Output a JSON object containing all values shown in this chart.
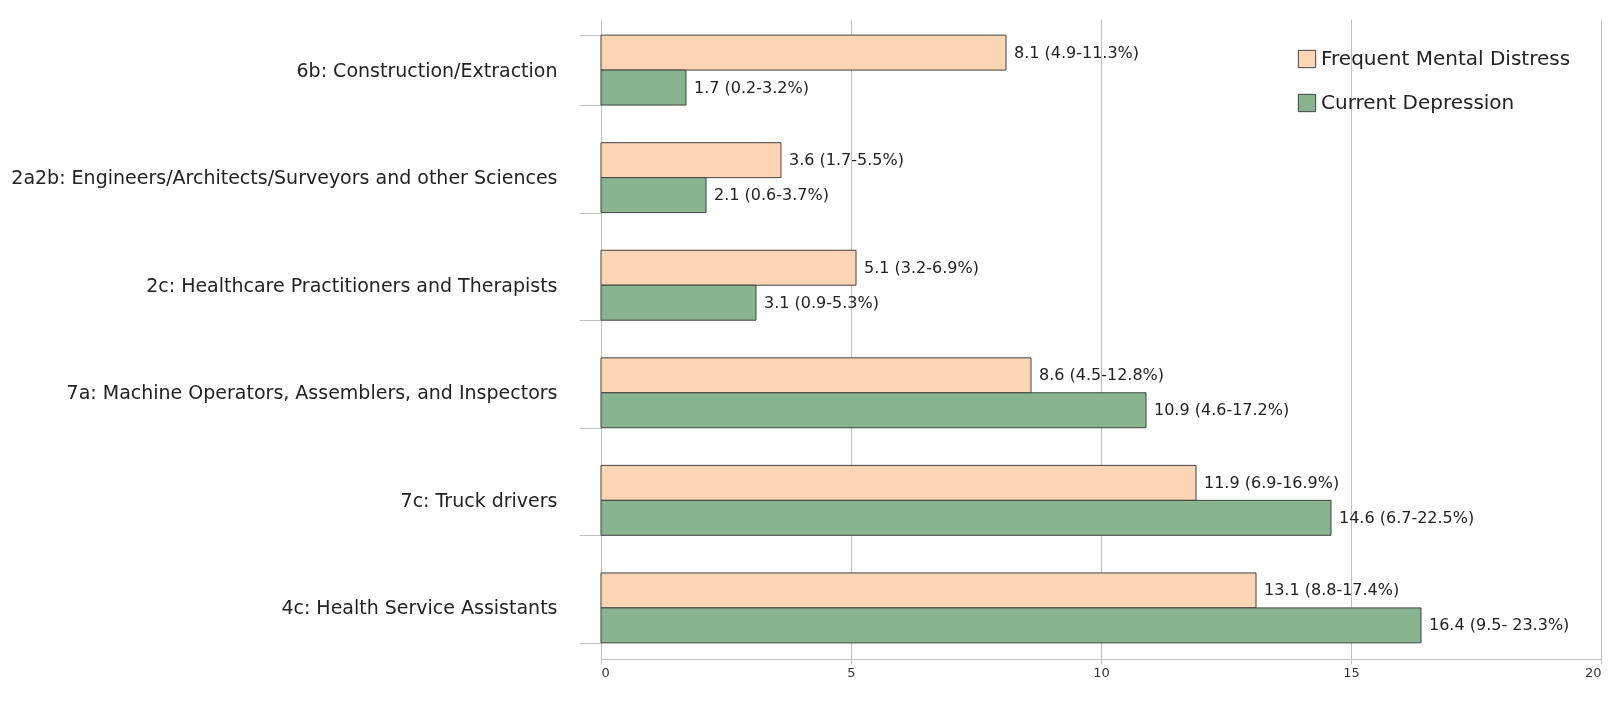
{
  "chart_data": {
    "type": "bar",
    "orientation": "horizontal",
    "categories": [
      "6b: Construction/Extraction",
      "2a2b: Engineers/Architects/Surveyors and other Sciences",
      "2c: Healthcare Practitioners and Therapists",
      "7a: Machine Operators, Assemblers, and Inspectors",
      "7c: Truck drivers",
      "4c: Health Service Assistants"
    ],
    "series": [
      {
        "name": "Frequent Mental Distress",
        "color": "#fcd5b5",
        "values": [
          8.1,
          3.6,
          5.1,
          8.6,
          11.9,
          13.1
        ],
        "value_labels": [
          "8.1  (4.9-11.3%)",
          "3.6  (1.7-5.5%)",
          "5.1  (3.2-6.9%)",
          "8.6  (4.5-12.8%)",
          "11.9  (6.9-16.9%)",
          "13.1  (8.8-17.4%)"
        ]
      },
      {
        "name": "Current Depression",
        "color": "#88b58f",
        "values": [
          1.7,
          2.1,
          3.1,
          10.9,
          14.6,
          16.4
        ],
        "value_labels": [
          "1.7  (0.2-3.2%)",
          "2.1  (0.6-3.7%)",
          "3.1  (0.9-5.3%)",
          "10.9  (4.6-17.2%)",
          "14.6  (6.7-22.5%)",
          "16.4  (9.5- 23.3%)"
        ]
      }
    ],
    "xlim": [
      0,
      20
    ],
    "xticks": [
      0,
      5,
      10,
      15,
      20
    ],
    "grid": "x",
    "legend": "top right"
  }
}
